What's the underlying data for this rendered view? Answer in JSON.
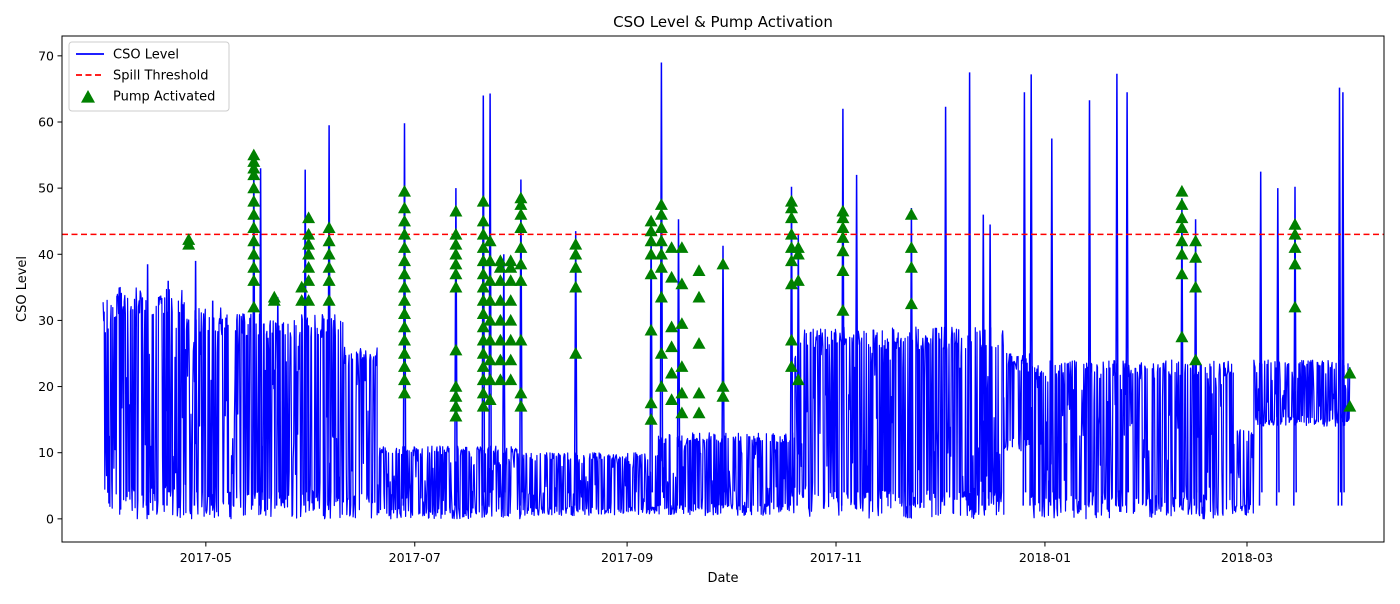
{
  "chart_data": {
    "type": "line",
    "title": "CSO Level & Pump Activation",
    "xlabel": "Date",
    "ylabel": "CSO Level",
    "x_range": [
      "2017-03-20",
      "2018-04-10"
    ],
    "ylim": [
      -3.5,
      73
    ],
    "grid": false,
    "legend_position": "top-left",
    "x_ticks": [
      {
        "date": "2017-05-01",
        "label": "2017-05"
      },
      {
        "date": "2017-07-01",
        "label": "2017-07"
      },
      {
        "date": "2017-09-01",
        "label": "2017-09"
      },
      {
        "date": "2017-11-01",
        "label": "2017-11"
      },
      {
        "date": "2018-01-01",
        "label": "2018-01"
      },
      {
        "date": "2018-03-01",
        "label": "2018-03"
      }
    ],
    "y_ticks": [
      0,
      10,
      20,
      30,
      40,
      50,
      60,
      70
    ],
    "series": [
      {
        "name": "CSO Level",
        "kind": "line",
        "color": "#0000ff",
        "segments": [
          {
            "start": "2017-04-01",
            "end": "2017-04-05",
            "low": 0,
            "high": 34
          },
          {
            "start": "2017-04-05",
            "end": "2017-04-25",
            "low": 0,
            "high": 35
          },
          {
            "start": "2017-04-25",
            "end": "2017-05-10",
            "low": 0,
            "high": 32
          },
          {
            "start": "2017-05-10",
            "end": "2017-06-10",
            "low": 0,
            "high": 31
          },
          {
            "start": "2017-06-10",
            "end": "2017-06-20",
            "low": 0,
            "high": 26
          },
          {
            "start": "2017-06-20",
            "end": "2017-08-01",
            "low": 0,
            "high": 11
          },
          {
            "start": "2017-08-01",
            "end": "2017-09-10",
            "low": 0.5,
            "high": 10
          },
          {
            "start": "2017-09-10",
            "end": "2017-10-20",
            "low": 0.5,
            "high": 13
          },
          {
            "start": "2017-10-20",
            "end": "2017-11-01",
            "low": 0,
            "high": 29
          },
          {
            "start": "2017-11-01",
            "end": "2017-12-20",
            "low": 0,
            "high": 29
          },
          {
            "start": "2017-12-20",
            "end": "2017-12-28",
            "low": 10,
            "high": 25
          },
          {
            "start": "2017-12-28",
            "end": "2018-02-25",
            "low": 0,
            "high": 24
          },
          {
            "start": "2018-02-25",
            "end": "2018-03-03",
            "low": 0.5,
            "high": 14
          },
          {
            "start": "2018-03-03",
            "end": "2018-03-31",
            "low": 14,
            "high": 24
          }
        ],
        "spikes": [
          {
            "date": "2017-04-14",
            "value": 38.5
          },
          {
            "date": "2017-04-20",
            "value": 36
          },
          {
            "date": "2017-04-28",
            "value": 39
          },
          {
            "date": "2017-05-03",
            "value": 33
          },
          {
            "date": "2017-05-15",
            "value": 55.5
          },
          {
            "date": "2017-05-17",
            "value": 53
          },
          {
            "date": "2017-05-22",
            "value": 33.5
          },
          {
            "date": "2017-05-30",
            "value": 52.8
          },
          {
            "date": "2017-06-06",
            "value": 59.5
          },
          {
            "date": "2017-06-28",
            "value": 59.8
          },
          {
            "date": "2017-07-13",
            "value": 50
          },
          {
            "date": "2017-07-21",
            "value": 64
          },
          {
            "date": "2017-07-23",
            "value": 64.3
          },
          {
            "date": "2017-07-27",
            "value": 40
          },
          {
            "date": "2017-08-01",
            "value": 51.3
          },
          {
            "date": "2017-08-17",
            "value": 43.5
          },
          {
            "date": "2017-09-08",
            "value": 45
          },
          {
            "date": "2017-09-11",
            "value": 69
          },
          {
            "date": "2017-09-16",
            "value": 45.3
          },
          {
            "date": "2017-09-29",
            "value": 41.3
          },
          {
            "date": "2017-10-19",
            "value": 50.2
          },
          {
            "date": "2017-10-21",
            "value": 43
          },
          {
            "date": "2017-11-03",
            "value": 62
          },
          {
            "date": "2017-11-07",
            "value": 52
          },
          {
            "date": "2017-11-23",
            "value": 47
          },
          {
            "date": "2017-12-03",
            "value": 62.3
          },
          {
            "date": "2017-12-10",
            "value": 67.5
          },
          {
            "date": "2017-12-14",
            "value": 46
          },
          {
            "date": "2017-12-16",
            "value": 44.5
          },
          {
            "date": "2017-12-26",
            "value": 64.5
          },
          {
            "date": "2017-12-28",
            "value": 67.2
          },
          {
            "date": "2018-01-03",
            "value": 57.5
          },
          {
            "date": "2018-01-14",
            "value": 63.3
          },
          {
            "date": "2018-01-22",
            "value": 67.3
          },
          {
            "date": "2018-01-25",
            "value": 64.5
          },
          {
            "date": "2018-02-10",
            "value": 48.5
          },
          {
            "date": "2018-02-14",
            "value": 45.3
          },
          {
            "date": "2018-03-05",
            "value": 52.5
          },
          {
            "date": "2018-03-10",
            "value": 50
          },
          {
            "date": "2018-03-15",
            "value": 50.2
          },
          {
            "date": "2018-03-28",
            "value": 65.2
          },
          {
            "date": "2018-03-29",
            "value": 64.5
          }
        ]
      },
      {
        "name": "Spill Threshold",
        "kind": "hline",
        "color": "#ff0000",
        "value": 43
      },
      {
        "name": "Pump Activated",
        "kind": "scatter",
        "marker": "triangle-up",
        "color": "#008000",
        "clusters": [
          {
            "date": "2017-04-26",
            "values": [
              41.5,
              42.2
            ]
          },
          {
            "date": "2017-05-15",
            "values": [
              32,
              36,
              38,
              40,
              42,
              44,
              46,
              48,
              50,
              52,
              53,
              54,
              55
            ]
          },
          {
            "date": "2017-05-21",
            "values": [
              33,
              33.5
            ]
          },
          {
            "date": "2017-05-29",
            "values": [
              33,
              35
            ]
          },
          {
            "date": "2017-05-31",
            "values": [
              33,
              36,
              38,
              40,
              41.5,
              43,
              45.5
            ]
          },
          {
            "date": "2017-06-06",
            "values": [
              33,
              36,
              38,
              40,
              42,
              44
            ]
          },
          {
            "date": "2017-06-28",
            "values": [
              19,
              21,
              23,
              25,
              27,
              29,
              31,
              33,
              35,
              37,
              39,
              41,
              43,
              45,
              47,
              49.5
            ]
          },
          {
            "date": "2017-07-13",
            "values": [
              15.5,
              17,
              18.5,
              20,
              25.5,
              35,
              37,
              38.5,
              40,
              41.5,
              43,
              46.5
            ]
          },
          {
            "date": "2017-07-21",
            "values": [
              17,
              19,
              21,
              23,
              25,
              27,
              29,
              31,
              33,
              35,
              37,
              39,
              41,
              43,
              45,
              48
            ]
          },
          {
            "date": "2017-07-23",
            "values": [
              18,
              21,
              24,
              27,
              30,
              33,
              36,
              39,
              42
            ]
          },
          {
            "date": "2017-07-26",
            "values": [
              21,
              24,
              27,
              30,
              33,
              36,
              38,
              39
            ]
          },
          {
            "date": "2017-07-29",
            "values": [
              21,
              24,
              27,
              30,
              33,
              36,
              38,
              39
            ]
          },
          {
            "date": "2017-08-01",
            "values": [
              17,
              19,
              27,
              36,
              38.5,
              41,
              44,
              46,
              47.5,
              48.5
            ]
          },
          {
            "date": "2017-08-17",
            "values": [
              25,
              35,
              38,
              40,
              41.5
            ]
          },
          {
            "date": "2017-09-08",
            "values": [
              15,
              17.5,
              28.5,
              37,
              40,
              42,
              43.5,
              45
            ]
          },
          {
            "date": "2017-09-11",
            "values": [
              20,
              25,
              33.5,
              38,
              40,
              42,
              44,
              46,
              47.5
            ]
          },
          {
            "date": "2017-09-14",
            "values": [
              18,
              22,
              26,
              29,
              36.5,
              41
            ]
          },
          {
            "date": "2017-09-17",
            "values": [
              16,
              19,
              23,
              29.5,
              35.5,
              41
            ]
          },
          {
            "date": "2017-09-22",
            "values": [
              16,
              19,
              26.5,
              33.5,
              37.5
            ]
          },
          {
            "date": "2017-09-29",
            "values": [
              18.5,
              20,
              38.5
            ]
          },
          {
            "date": "2017-10-19",
            "values": [
              23,
              27,
              35.5,
              39,
              41,
              43,
              45.5,
              47,
              48
            ]
          },
          {
            "date": "2017-10-21",
            "values": [
              21,
              36,
              40,
              41
            ]
          },
          {
            "date": "2017-11-03",
            "values": [
              31.5,
              37.5,
              40.5,
              42.5,
              44,
              45.5,
              46.5
            ]
          },
          {
            "date": "2017-11-23",
            "values": [
              32.5,
              38,
              41,
              46
            ]
          },
          {
            "date": "2018-02-10",
            "values": [
              27.5,
              37,
              40,
              42,
              44,
              45.5,
              47.5,
              49.5
            ]
          },
          {
            "date": "2018-02-14",
            "values": [
              24,
              35,
              39.5,
              42
            ]
          },
          {
            "date": "2018-03-15",
            "values": [
              32,
              38.5,
              41,
              43,
              44.5
            ]
          },
          {
            "date": "2018-03-31",
            "values": [
              17,
              22
            ]
          }
        ]
      }
    ]
  }
}
